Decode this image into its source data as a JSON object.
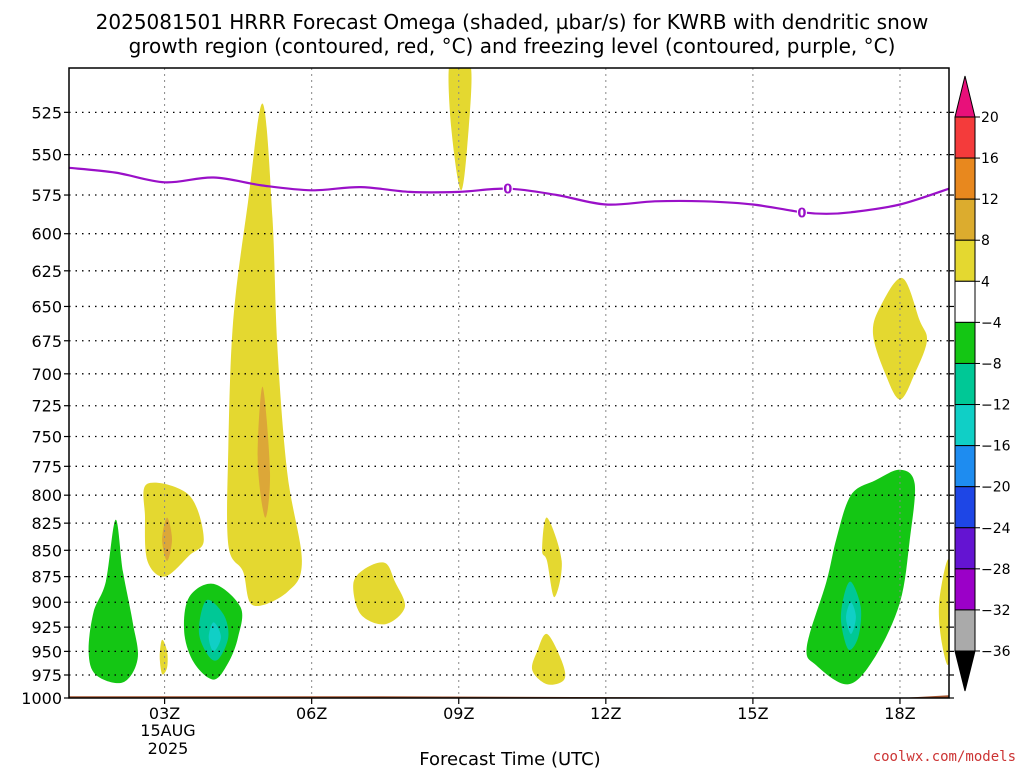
{
  "chart_data": {
    "type": "time-height contour",
    "title_line1": "2025081501 HRRR Forecast Omega (shaded, µbar/s) for KWRB with dendritic snow",
    "title_line2": "growth region (contoured, red, °C) and freezing level (contoured, purple, °C)",
    "xlabel": "Forecast Time (UTC)",
    "x_ticks": [
      {
        "hour": 3,
        "label": "03Z"
      },
      {
        "hour": 6,
        "label": "06Z"
      },
      {
        "hour": 9,
        "label": "09Z"
      },
      {
        "hour": 12,
        "label": "12Z"
      },
      {
        "hour": 15,
        "label": "15Z"
      },
      {
        "hour": 18,
        "label": "18Z"
      }
    ],
    "date_label": [
      "15AUG",
      "2025"
    ],
    "xlim": [
      1.05,
      19.0
    ],
    "y_ticks": [
      525,
      550,
      575,
      600,
      625,
      650,
      675,
      700,
      725,
      750,
      775,
      800,
      825,
      850,
      875,
      900,
      925,
      950,
      975,
      1000
    ],
    "ylim": [
      1000,
      500
    ],
    "y_scale": "log",
    "freezing_level": {
      "label": "0",
      "points": [
        [
          1.05,
          558
        ],
        [
          2,
          561
        ],
        [
          3,
          567
        ],
        [
          4,
          564
        ],
        [
          5,
          569
        ],
        [
          6,
          572
        ],
        [
          7,
          570
        ],
        [
          8,
          573
        ],
        [
          9,
          573
        ],
        [
          10,
          571
        ],
        [
          11,
          575
        ],
        [
          12,
          581
        ],
        [
          13,
          579
        ],
        [
          14,
          579
        ],
        [
          15,
          581
        ],
        [
          16,
          586
        ],
        [
          16.5,
          587
        ],
        [
          17,
          586
        ],
        [
          18,
          581
        ],
        [
          19,
          571
        ]
      ]
    },
    "omega_regions": [
      {
        "level": "4 to 8",
        "color": "#e4d830",
        "points": [
          [
            9.0,
            500
          ],
          [
            9.25,
            500
          ],
          [
            9.2,
            535
          ],
          [
            9.05,
            572
          ],
          [
            8.85,
            535
          ],
          [
            8.8,
            500
          ]
        ]
      },
      {
        "level": "4 to 8",
        "color": "#e4d830",
        "points": [
          [
            5.0,
            520
          ],
          [
            5.2,
            590
          ],
          [
            5.3,
            680
          ],
          [
            5.5,
            780
          ],
          [
            5.8,
            860
          ],
          [
            5.5,
            890
          ],
          [
            4.8,
            903
          ],
          [
            4.6,
            870
          ],
          [
            4.3,
            845
          ],
          [
            4.3,
            760
          ],
          [
            4.4,
            660
          ],
          [
            4.7,
            580
          ]
        ]
      },
      {
        "level": "4 to 8",
        "color": "#e4d830",
        "points": [
          [
            2.65,
            790
          ],
          [
            3.5,
            800
          ],
          [
            3.8,
            840
          ],
          [
            3.5,
            855
          ],
          [
            3.0,
            875
          ],
          [
            2.65,
            860
          ],
          [
            2.6,
            820
          ]
        ]
      },
      {
        "level": "4 to 8",
        "color": "#e4d830",
        "points": [
          [
            2.95,
            938
          ],
          [
            3.05,
            950
          ],
          [
            3.05,
            967
          ],
          [
            2.95,
            974
          ],
          [
            2.9,
            955
          ]
        ]
      },
      {
        "level": "4 to 8",
        "color": "#e4d830",
        "points": [
          [
            7.5,
            862
          ],
          [
            7.7,
            880
          ],
          [
            7.9,
            905
          ],
          [
            7.5,
            922
          ],
          [
            7.0,
            912
          ],
          [
            6.85,
            882
          ],
          [
            7.1,
            867
          ]
        ]
      },
      {
        "level": "4 to 8",
        "color": "#e4d830",
        "points": [
          [
            10.8,
            820
          ],
          [
            11.1,
            860
          ],
          [
            10.95,
            895
          ],
          [
            10.8,
            860
          ],
          [
            10.7,
            850
          ]
        ]
      },
      {
        "level": "4 to 8",
        "color": "#e4d830",
        "points": [
          [
            10.8,
            932
          ],
          [
            11.1,
            960
          ],
          [
            11.15,
            980
          ],
          [
            10.8,
            985
          ],
          [
            10.5,
            970
          ],
          [
            10.6,
            950
          ]
        ]
      },
      {
        "level": "4 to 8",
        "color": "#e4d830",
        "points": [
          [
            18.05,
            630
          ],
          [
            18.4,
            660
          ],
          [
            18.55,
            675
          ],
          [
            18.3,
            700
          ],
          [
            18.0,
            720
          ],
          [
            17.7,
            700
          ],
          [
            17.45,
            670
          ],
          [
            17.6,
            650
          ]
        ]
      },
      {
        "level": "4 to 8",
        "color": "#e4d830",
        "points": [
          [
            19.0,
            860
          ],
          [
            19.0,
            960
          ],
          [
            18.85,
            940
          ],
          [
            18.8,
            900
          ]
        ]
      },
      {
        "level": "8 to 12",
        "color": "#dca738",
        "points": [
          [
            5.0,
            710
          ],
          [
            5.15,
            780
          ],
          [
            5.05,
            820
          ],
          [
            4.9,
            770
          ]
        ]
      },
      {
        "level": "8 to 12",
        "color": "#dca738",
        "points": [
          [
            3.05,
            820
          ],
          [
            3.15,
            840
          ],
          [
            3.05,
            860
          ],
          [
            2.95,
            840
          ]
        ]
      },
      {
        "level": "-4 to -8",
        "color": "#14c614",
        "points": [
          [
            2.0,
            822
          ],
          [
            2.15,
            870
          ],
          [
            2.35,
            920
          ],
          [
            2.45,
            958
          ],
          [
            2.15,
            983
          ],
          [
            1.6,
            975
          ],
          [
            1.45,
            950
          ],
          [
            1.55,
            910
          ],
          [
            1.8,
            880
          ]
        ]
      },
      {
        "level": "-4 to -8",
        "color": "#14c614",
        "points": [
          [
            3.5,
            895
          ],
          [
            4.0,
            882
          ],
          [
            4.55,
            905
          ],
          [
            4.5,
            935
          ],
          [
            4.3,
            962
          ],
          [
            4.0,
            980
          ],
          [
            3.6,
            962
          ],
          [
            3.4,
            930
          ]
        ]
      },
      {
        "level": "-4 to -8",
        "color": "#14c614",
        "points": [
          [
            18.0,
            778
          ],
          [
            18.3,
            790
          ],
          [
            18.2,
            840
          ],
          [
            18.0,
            900
          ],
          [
            17.5,
            955
          ],
          [
            16.95,
            985
          ],
          [
            16.3,
            965
          ],
          [
            16.1,
            945
          ],
          [
            16.5,
            880
          ],
          [
            16.7,
            840
          ],
          [
            17.0,
            800
          ],
          [
            17.5,
            787
          ]
        ]
      },
      {
        "level": "-8 to -12",
        "color": "#00c896",
        "points": [
          [
            3.85,
            898
          ],
          [
            4.2,
            912
          ],
          [
            4.3,
            935
          ],
          [
            4.1,
            958
          ],
          [
            3.9,
            955
          ],
          [
            3.7,
            930
          ]
        ]
      },
      {
        "level": "-8 to -12",
        "color": "#00c896",
        "points": [
          [
            17.0,
            880
          ],
          [
            17.2,
            905
          ],
          [
            17.15,
            935
          ],
          [
            16.95,
            948
          ],
          [
            16.8,
            920
          ],
          [
            16.85,
            895
          ]
        ]
      },
      {
        "level": "-12 to -16",
        "color": "#10cfc6",
        "points": [
          [
            4.0,
            920
          ],
          [
            4.15,
            935
          ],
          [
            4.0,
            950
          ],
          [
            3.9,
            935
          ]
        ]
      },
      {
        "level": "-12 to -16",
        "color": "#10cfc6",
        "points": [
          [
            17.0,
            900
          ],
          [
            17.1,
            915
          ],
          [
            17.0,
            932
          ],
          [
            16.9,
            915
          ]
        ]
      }
    ],
    "terrain": {
      "color": "#a0522d",
      "points": [
        [
          1.05,
          998
        ],
        [
          7,
          998
        ],
        [
          12,
          999
        ],
        [
          15,
          1000
        ],
        [
          18,
          1000
        ],
        [
          19,
          997
        ]
      ]
    },
    "colorbar": {
      "labels": [
        "20",
        "16",
        "12",
        "8",
        "4",
        "−4",
        "−8",
        "−12",
        "−16",
        "−20",
        "−24",
        "−28",
        "−32",
        "−36"
      ],
      "colors": [
        "#f43b3b",
        "#e8881e",
        "#dcac2e",
        "#e4d830",
        "#ffffff",
        "#14c614",
        "#00c896",
        "#10cfc6",
        "#1e8cf0",
        "#1e46e6",
        "#6414d2",
        "#9b00c8",
        "#aaaaaa"
      ],
      "top_arrow_color": "#e8107a",
      "bottom_arrow_color": "#000000"
    },
    "watermark": "coolwx.com/models"
  }
}
